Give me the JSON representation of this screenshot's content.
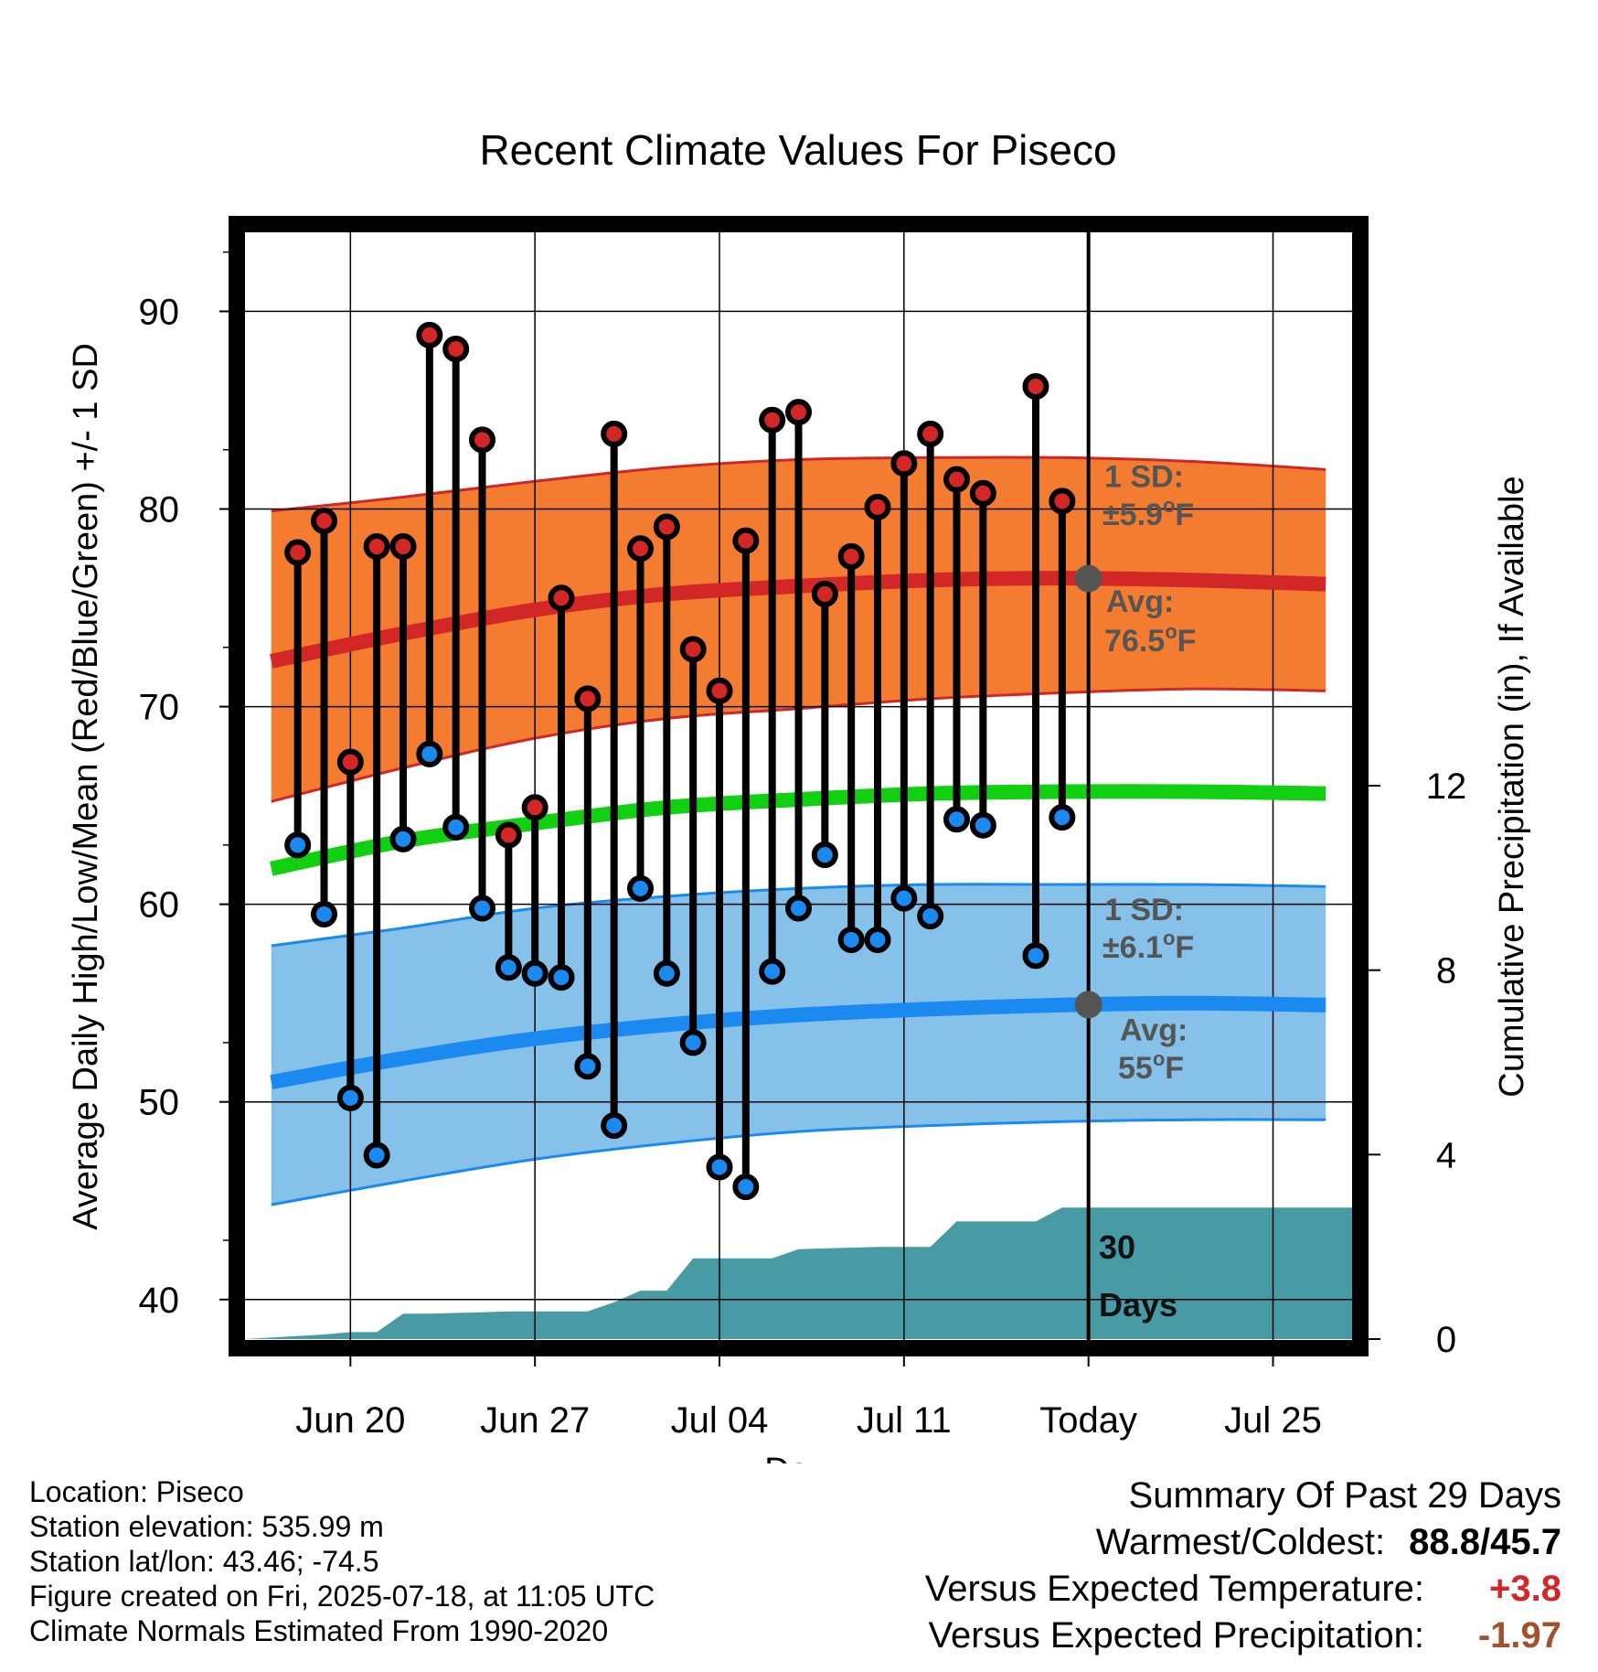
{
  "chart_data": {
    "type": "line",
    "title": "Recent Climate Values For Piseco",
    "xlabel": "Day",
    "ylabel": "Average Daily High/Low/Mean (Red/Blue/Green) +/- 1 SD",
    "y2label": "Cumulative Precipitation (in), If Available",
    "ylim": [
      38,
      94
    ],
    "y2lim": [
      0,
      24
    ],
    "xlim": [
      "2025-06-16",
      "2025-07-28"
    ],
    "yticks": [
      "40",
      "50",
      "60",
      "70",
      "80",
      "90"
    ],
    "y2ticks": [
      "0",
      "4",
      "8",
      "12"
    ],
    "xticks": [
      {
        "date": "2025-06-20",
        "label": "Jun 20"
      },
      {
        "date": "2025-06-27",
        "label": "Jun 27"
      },
      {
        "date": "2025-07-04",
        "label": "Jul 04"
      },
      {
        "date": "2025-07-11",
        "label": "Jul 11"
      },
      {
        "date": "2025-07-18",
        "label": "Today"
      },
      {
        "date": "2025-07-25",
        "label": "Jul 25"
      }
    ],
    "grid": true,
    "today": "2025-07-18",
    "normals_dates": [
      "2025-06-17",
      "2025-06-22",
      "2025-06-27",
      "2025-07-02",
      "2025-07-07",
      "2025-07-12",
      "2025-07-17",
      "2025-07-22",
      "2025-07-27"
    ],
    "normal_high": [
      72.3,
      73.7,
      74.9,
      75.7,
      76.1,
      76.4,
      76.5,
      76.4,
      76.2
    ],
    "normal_high_upper": [
      79.9,
      80.6,
      81.4,
      82.1,
      82.5,
      82.6,
      82.6,
      82.4,
      82.0
    ],
    "normal_high_lower": [
      65.2,
      66.9,
      68.4,
      69.4,
      69.9,
      70.4,
      70.7,
      70.9,
      70.8
    ],
    "normal_mean": [
      61.8,
      63.2,
      64.1,
      64.9,
      65.3,
      65.6,
      65.7,
      65.7,
      65.6
    ],
    "normal_low": [
      51.0,
      52.2,
      53.2,
      53.9,
      54.4,
      54.7,
      54.9,
      55.0,
      54.9
    ],
    "normal_low_upper": [
      57.9,
      58.8,
      59.8,
      60.4,
      60.8,
      61.0,
      61.0,
      61.0,
      60.9
    ],
    "normal_low_lower": [
      44.8,
      46.0,
      47.1,
      47.9,
      48.5,
      48.8,
      49.0,
      49.1,
      49.1
    ],
    "observed": {
      "dates": [
        "2025-06-18",
        "2025-06-19",
        "2025-06-20",
        "2025-06-21",
        "2025-06-22",
        "2025-06-23",
        "2025-06-24",
        "2025-06-25",
        "2025-06-26",
        "2025-06-27",
        "2025-06-28",
        "2025-06-29",
        "2025-06-30",
        "2025-07-01",
        "2025-07-02",
        "2025-07-03",
        "2025-07-04",
        "2025-07-05",
        "2025-07-06",
        "2025-07-07",
        "2025-07-08",
        "2025-07-09",
        "2025-07-10",
        "2025-07-11",
        "2025-07-12",
        "2025-07-13",
        "2025-07-14",
        "2025-07-16",
        "2025-07-17"
      ],
      "high": [
        77.8,
        79.4,
        67.2,
        78.1,
        78.1,
        88.8,
        88.1,
        83.5,
        63.5,
        64.9,
        75.5,
        70.4,
        83.8,
        78.0,
        79.1,
        72.9,
        70.8,
        78.4,
        84.5,
        84.9,
        75.7,
        77.6,
        80.1,
        82.3,
        83.8,
        81.5,
        80.8,
        86.2,
        80.4
      ],
      "low": [
        63.0,
        59.5,
        50.2,
        47.3,
        63.3,
        67.6,
        63.9,
        59.8,
        56.8,
        56.5,
        56.3,
        51.8,
        48.8,
        60.8,
        56.5,
        53.0,
        46.7,
        45.7,
        56.6,
        59.8,
        62.5,
        58.2,
        58.2,
        60.3,
        59.4,
        64.3,
        64.0,
        57.4,
        64.4
      ]
    },
    "precip_dates": [
      "2025-06-16",
      "2025-06-19",
      "2025-06-20",
      "2025-06-21",
      "2025-06-22",
      "2025-06-23",
      "2025-06-26",
      "2025-06-29",
      "2025-06-30",
      "2025-07-01",
      "2025-07-02",
      "2025-07-03",
      "2025-07-06",
      "2025-07-07",
      "2025-07-10",
      "2025-07-11",
      "2025-07-12",
      "2025-07-13",
      "2025-07-16",
      "2025-07-17",
      "2025-07-28"
    ],
    "precip_cum": [
      0.0,
      0.1,
      0.15,
      0.15,
      0.55,
      0.55,
      0.6,
      0.6,
      0.8,
      1.05,
      1.05,
      1.75,
      1.75,
      1.95,
      2.0,
      2.0,
      2.0,
      2.55,
      2.55,
      2.85,
      2.85
    ],
    "annotations": {
      "high_sd_label": "1 SD:",
      "high_sd_value": "±5.9",
      "high_avg_label": "Avg:",
      "high_avg_value": "76.5",
      "low_sd_label": "1 SD:",
      "low_sd_value": "±6.1",
      "low_avg_label": "Avg:",
      "low_avg_value": "55",
      "degree_unit": "o",
      "f_unit": "F",
      "days_line1": "30",
      "days_line2": "Days"
    },
    "colors": {
      "high_band": "#f47c31",
      "high_band_edge": "#d02626",
      "high_line": "#d32626",
      "mean_line": "#11d011",
      "low_band": "#85c1e8",
      "low_band_edge": "#1b8af0",
      "low_line": "#1b8af0",
      "precip": "#489ba5",
      "high_dot": "#d32626",
      "low_dot": "#1b8af0",
      "today_dot": "#555555"
    }
  },
  "footer": {
    "location": "Location: Piseco",
    "elevation": "Station elevation: 535.99 m",
    "latlon": "Station lat/lon: 43.46; -74.5",
    "created": "Figure created on Fri, 2025-07-18, at 11:05 UTC",
    "normals": "Climate Normals Estimated From 1990-2020"
  },
  "summary": {
    "heading": "Summary Of Past 29 Days",
    "warmest_label": "Warmest/Coldest:",
    "warmest_value": "88.8",
    "separator": "/",
    "coldest_value": "45.7",
    "temp_label": "Versus Expected Temperature:",
    "temp_value": "+3.8",
    "temp_color": "#d32626",
    "precip_label": "Versus Expected Precipitation:",
    "precip_value": "-1.97",
    "precip_color": "#a0522d"
  }
}
